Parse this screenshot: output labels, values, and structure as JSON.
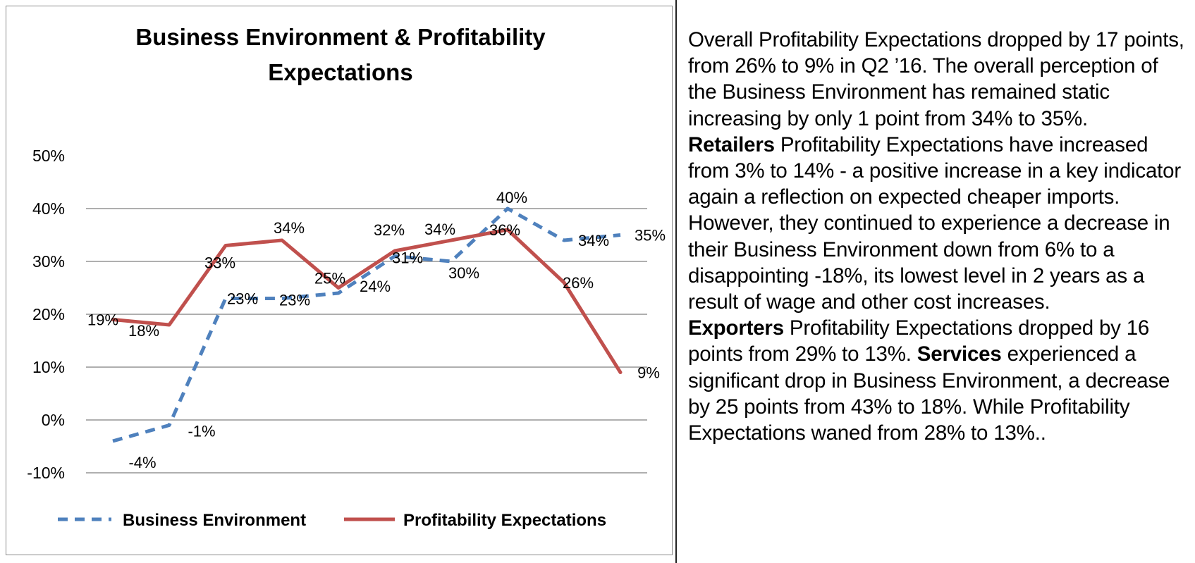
{
  "chart_data": {
    "type": "line",
    "title_lines": [
      "Business Environment & Profitability",
      "Expectations"
    ],
    "xlabel": "",
    "ylabel": "",
    "ylim": [
      -0.1,
      0.5
    ],
    "y_ticks": [
      "50%",
      "40%",
      "30%",
      "20%",
      "10%",
      "0%",
      "-10%"
    ],
    "y_tick_values": [
      0.5,
      0.4,
      0.3,
      0.2,
      0.1,
      0.0,
      -0.1
    ],
    "grid": true,
    "legend_position": "bottom",
    "series": [
      {
        "name": "Business Environment",
        "style": "dashed",
        "color": "#4f81bd",
        "values": [
          -0.04,
          -0.01,
          0.23,
          0.23,
          0.24,
          0.31,
          0.3,
          0.4,
          0.34,
          0.35
        ],
        "labels": [
          "-4%",
          "-1%",
          "23%",
          "23%",
          "24%",
          "31%",
          "30%",
          "40%",
          "34%",
          "35%"
        ]
      },
      {
        "name": "Profitability Expectations",
        "style": "solid",
        "color": "#c0504d",
        "values": [
          0.19,
          0.18,
          0.33,
          0.34,
          0.25,
          0.32,
          0.34,
          0.36,
          0.26,
          0.09
        ],
        "labels": [
          "19%",
          "18%",
          "33%",
          "34%",
          "25%",
          "32%",
          "34%",
          "36%",
          "26%",
          "9%"
        ]
      }
    ]
  },
  "text": {
    "p1_a": "Overall Profitability Expectations dropped by 17 points, from 26% to 9% in Q2 ’16. The overall perception of the Business Environment has remained static increasing by only 1 point from 34% to 35%.",
    "p1_retailers": "Retailers",
    "p1_b": " Profitability Expectations have increased from 3% to 14% - a positive increase in a key indicator again a reflection on expected cheaper imports. However, they continued to experience a decrease in their Business Environment down from 6% to a disappointing -18%, its lowest level in 2 years as a result of wage and other cost increases.",
    "p1_exporters": "Exporters",
    "p1_c": " Profitability Expectations dropped by 16 points from 29% to 13%. ",
    "p1_services": "Services",
    "p1_d": " experienced a significant drop in Business Environment, a decrease by 25 points from 43% to 18%.  While Profitability Expectations waned from 28% to 13%.."
  }
}
